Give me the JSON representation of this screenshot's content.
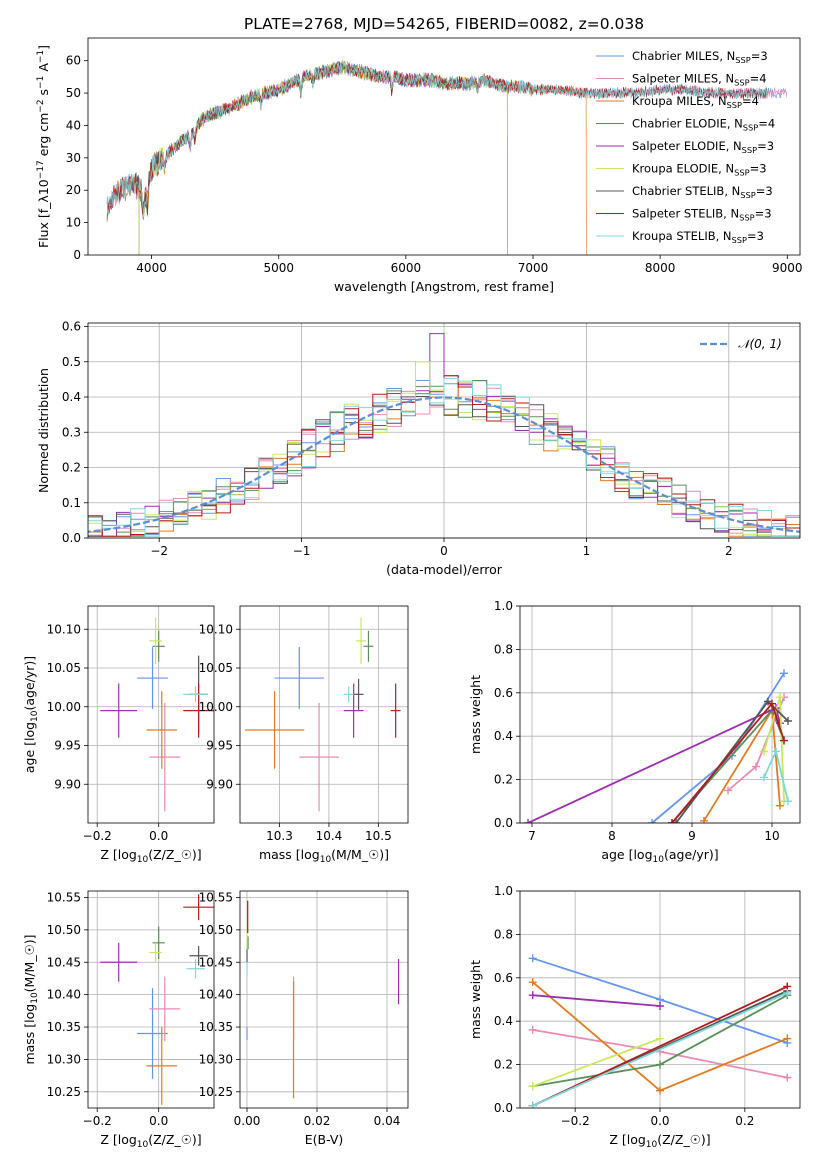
{
  "figure": {
    "title": "PLATE=2768, MJD=54265, FIBERID=0082, z=0.038"
  },
  "series_colors": [
    "#6495ed",
    "#e88ab5",
    "#e07b20",
    "#5b8f5b",
    "#9b2fae",
    "#c8e85a",
    "#555555",
    "#b21b1b",
    "#7fd8d8"
  ],
  "chart_data": [
    {
      "id": "spectrum",
      "type": "line",
      "xlabel": "wavelength [Angstrom, rest frame]",
      "ylabel": "Flux [f_λ 10^-17 erg cm^-2 s^-1 A^-1]",
      "xlim": [
        3500,
        9100
      ],
      "ylim": [
        0,
        67
      ],
      "xticks": [
        4000,
        5000,
        6000,
        7000,
        8000,
        9000
      ],
      "yticks": [
        0,
        10,
        20,
        30,
        40,
        50,
        60
      ],
      "legend_position": "top-right",
      "series": [
        {
          "name": "Chabrier MILES, N_SSP=3",
          "color": "#6495ed",
          "x": [
            3650,
            9000
          ]
        },
        {
          "name": "Salpeter MILES, N_SSP=4",
          "color": "#e88ab5",
          "x": [
            3650,
            9000
          ]
        },
        {
          "name": "Kroupa MILES, N_SSP=4",
          "color": "#e07b20",
          "x": [
            3650,
            7420
          ]
        },
        {
          "name": "Chabrier ELODIE, N_SSP=4",
          "color": "#5b8f5b",
          "x": [
            3900,
            6800
          ]
        },
        {
          "name": "Salpeter ELODIE, N_SSP=3",
          "color": "#9b2fae",
          "x": [
            3900,
            6800
          ]
        },
        {
          "name": "Kroupa ELODIE, N_SSP=3",
          "color": "#c8e85a",
          "x": [
            3900,
            6800
          ]
        },
        {
          "name": "Chabrier STELIB, N_SSP=3",
          "color": "#555555",
          "x": [
            3650,
            8850
          ]
        },
        {
          "name": "Salpeter STELIB, N_SSP=3",
          "color": "#b21b1b",
          "x": [
            3650,
            8850
          ]
        },
        {
          "name": "Kroupa STELIB, N_SSP=3",
          "color": "#7fd8d8",
          "x": [
            3650,
            8850
          ]
        }
      ],
      "continuum": {
        "x": [
          3650,
          3700,
          3750,
          3800,
          3850,
          3900,
          3950,
          4000,
          4100,
          4200,
          4300,
          4400,
          4500,
          4600,
          4700,
          4800,
          4900,
          5000,
          5100,
          5200,
          5300,
          5400,
          5500,
          5600,
          5700,
          5800,
          5900,
          6000,
          6100,
          6200,
          6300,
          6400,
          6500,
          6600,
          6700,
          6800,
          6900,
          7000,
          7200,
          7400,
          7600,
          7800,
          8000,
          8200,
          8400,
          8600,
          8850
        ],
        "y": [
          14,
          18,
          20,
          21,
          22,
          21,
          17,
          27,
          30,
          34,
          37,
          42,
          44,
          45,
          47,
          49,
          50,
          51,
          53,
          55,
          56,
          57,
          58,
          57,
          56,
          55,
          55,
          54,
          54,
          54,
          53,
          53,
          53,
          54,
          53,
          52,
          52,
          51,
          51,
          50,
          50,
          50,
          51,
          51,
          50,
          50,
          50
        ]
      }
    },
    {
      "id": "residuals",
      "type": "histogram",
      "xlabel": "(data-model)/error",
      "ylabel": "Normed distribution",
      "xlim": [
        -2.5,
        2.5
      ],
      "ylim": [
        0,
        0.61
      ],
      "xticks": [
        -2,
        -1,
        0,
        1,
        2
      ],
      "yticks": [
        0.0,
        0.1,
        0.2,
        0.3,
        0.4,
        0.5,
        0.6
      ],
      "bin_width": 0.1,
      "reference_curve": {
        "name": "𝒩(0, 1)",
        "color": "#5b8fd1",
        "style": "dashed",
        "mean": 0,
        "sigma": 1
      },
      "legend_position": "top-right",
      "peak_values": {
        "Salpeter ELODIE": 0.58,
        "Kroupa ELODIE": 0.5
      }
    },
    {
      "id": "age_vs_Z",
      "type": "errorbar",
      "xlabel": "Z [log10(Z/Z☉)]",
      "ylabel": "age  [log10(age/yr)]",
      "xlim": [
        -0.23,
        0.18
      ],
      "ylim": [
        9.85,
        10.13
      ],
      "xticks": [
        -0.2,
        0.0
      ],
      "yticks": [
        9.9,
        9.95,
        10.0,
        10.05,
        10.1
      ],
      "points": [
        {
          "series": "Chabrier MILES",
          "x": -0.02,
          "xerr": 0.05,
          "y": 10.037,
          "yerr": 0.04
        },
        {
          "series": "Salpeter MILES",
          "x": 0.02,
          "xerr": 0.05,
          "y": 9.935,
          "yerr": 0.07
        },
        {
          "series": "Kroupa MILES",
          "x": 0.01,
          "xerr": 0.05,
          "y": 9.97,
          "yerr": 0.05
        },
        {
          "series": "Chabrier ELODIE",
          "x": 0.0,
          "xerr": 0.02,
          "y": 10.078,
          "yerr": 0.02
        },
        {
          "series": "Salpeter ELODIE",
          "x": -0.13,
          "xerr": 0.06,
          "y": 9.995,
          "yerr": 0.035
        },
        {
          "series": "Kroupa ELODIE",
          "x": -0.01,
          "xerr": 0.02,
          "y": 10.085,
          "yerr": 0.03
        },
        {
          "series": "Chabrier STELIB",
          "x": 0.13,
          "xerr": 0.03,
          "y": 10.016,
          "yerr": 0.05
        },
        {
          "series": "Salpeter STELIB",
          "x": 0.13,
          "xerr": 0.05,
          "y": 9.995,
          "yerr": 0.035
        },
        {
          "series": "Kroupa STELIB",
          "x": 0.12,
          "xerr": 0.04,
          "y": 10.016,
          "yerr": 0.01
        }
      ]
    },
    {
      "id": "age_vs_mass",
      "type": "errorbar",
      "xlabel": "mass [log10(M/M☉)]",
      "ylabel": "",
      "xlim": [
        10.22,
        10.56
      ],
      "ylim": [
        9.85,
        10.13
      ],
      "xticks": [
        10.3,
        10.4,
        10.5
      ],
      "yticks": [
        9.9,
        9.95,
        10.0,
        10.05,
        10.1
      ],
      "points": [
        {
          "series": "Chabrier MILES",
          "x": 10.34,
          "xerr": 0.05,
          "y": 10.037,
          "yerr": 0.04
        },
        {
          "series": "Salpeter MILES",
          "x": 10.38,
          "xerr": 0.04,
          "y": 9.935,
          "yerr": 0.07
        },
        {
          "series": "Kroupa MILES",
          "x": 10.29,
          "xerr": 0.06,
          "y": 9.97,
          "yerr": 0.05
        },
        {
          "series": "Chabrier ELODIE",
          "x": 10.48,
          "xerr": 0.01,
          "y": 10.078,
          "yerr": 0.02
        },
        {
          "series": "Salpeter ELODIE",
          "x": 10.45,
          "xerr": 0.02,
          "y": 9.995,
          "yerr": 0.035
        },
        {
          "series": "Kroupa ELODIE",
          "x": 10.465,
          "xerr": 0.01,
          "y": 10.085,
          "yerr": 0.03
        },
        {
          "series": "Chabrier STELIB",
          "x": 10.46,
          "xerr": 0.01,
          "y": 10.016,
          "yerr": 0.02
        },
        {
          "series": "Salpeter STELIB",
          "x": 10.535,
          "xerr": 0.01,
          "y": 9.995,
          "yerr": 0.035
        },
        {
          "series": "Kroupa STELIB",
          "x": 10.44,
          "xerr": 0.01,
          "y": 10.016,
          "yerr": 0.01
        }
      ]
    },
    {
      "id": "weight_vs_age",
      "type": "line",
      "xlabel": "age  [log10(age/yr)]",
      "ylabel": "mass weight",
      "xlim": [
        6.85,
        10.35
      ],
      "ylim": [
        0,
        1
      ],
      "xticks": [
        7,
        8,
        9,
        10
      ],
      "yticks": [
        0.0,
        0.2,
        0.4,
        0.6,
        0.8,
        1.0
      ],
      "series": [
        {
          "name": "Chabrier MILES",
          "x": [
            8.5,
            9.5,
            10.15
          ],
          "y": [
            0.0,
            0.31,
            0.69
          ]
        },
        {
          "name": "Salpeter MILES",
          "x": [
            9.45,
            9.8,
            10.15
          ],
          "y": [
            0.15,
            0.26,
            0.58
          ]
        },
        {
          "name": "Kroupa MILES",
          "x": [
            9.15,
            10.0,
            10.1
          ],
          "y": [
            0.01,
            0.52,
            0.08
          ]
        },
        {
          "name": "Chabrier ELODIE",
          "x": [
            8.75,
            10.0,
            10.15
          ],
          "y": [
            0.0,
            0.52,
            0.38
          ]
        },
        {
          "name": "Salpeter ELODIE",
          "x": [
            6.95,
            10.05,
            10.1
          ],
          "y": [
            0.0,
            0.53,
            0.46
          ]
        },
        {
          "name": "Kroupa ELODIE",
          "x": [
            9.9,
            10.1,
            10.15
          ],
          "y": [
            0.33,
            0.58,
            0.1
          ]
        },
        {
          "name": "Chabrier STELIB",
          "x": [
            8.8,
            9.95,
            10.2
          ],
          "y": [
            0.0,
            0.56,
            0.47
          ]
        },
        {
          "name": "Salpeter STELIB",
          "x": [
            8.75,
            10.0,
            10.15
          ],
          "y": [
            0.0,
            0.55,
            0.38
          ]
        },
        {
          "name": "Kroupa STELIB",
          "x": [
            9.9,
            10.05,
            10.2
          ],
          "y": [
            0.21,
            0.33,
            0.1
          ]
        }
      ]
    },
    {
      "id": "mass_vs_Z",
      "type": "errorbar",
      "xlabel": "Z [log10(Z/Z☉)]",
      "ylabel": "mass [log10(M/M☉)]",
      "xlim": [
        -0.23,
        0.18
      ],
      "ylim": [
        10.225,
        10.56
      ],
      "xticks": [
        -0.2,
        0.0
      ],
      "yticks": [
        10.25,
        10.3,
        10.35,
        10.4,
        10.45,
        10.5,
        10.55
      ],
      "points": [
        {
          "series": "Chabrier MILES",
          "x": -0.02,
          "xerr": 0.05,
          "y": 10.34,
          "yerr": 0.07
        },
        {
          "series": "Salpeter MILES",
          "x": 0.02,
          "xerr": 0.05,
          "y": 10.378,
          "yerr": 0.05
        },
        {
          "series": "Kroupa MILES",
          "x": 0.01,
          "xerr": 0.05,
          "y": 10.29,
          "yerr": 0.06
        },
        {
          "series": "Chabrier ELODIE",
          "x": 0.0,
          "xerr": 0.02,
          "y": 10.48,
          "yerr": 0.025
        },
        {
          "series": "Salpeter ELODIE",
          "x": -0.13,
          "xerr": 0.06,
          "y": 10.45,
          "yerr": 0.03
        },
        {
          "series": "Kroupa ELODIE",
          "x": -0.01,
          "xerr": 0.02,
          "y": 10.465,
          "yerr": 0.015
        },
        {
          "series": "Chabrier STELIB",
          "x": 0.13,
          "xerr": 0.03,
          "y": 10.46,
          "yerr": 0.015
        },
        {
          "series": "Salpeter STELIB",
          "x": 0.13,
          "xerr": 0.05,
          "y": 10.535,
          "yerr": 0.02
        },
        {
          "series": "Kroupa STELIB",
          "x": 0.12,
          "xerr": 0.03,
          "y": 10.44,
          "yerr": 0.015
        }
      ]
    },
    {
      "id": "mass_vs_ebv",
      "type": "errorbar",
      "xlabel": "E(B-V)",
      "ylabel": "",
      "xlim": [
        -0.002,
        0.046
      ],
      "ylim": [
        10.225,
        10.56
      ],
      "xticks": [
        0.0,
        0.02,
        0.04
      ],
      "yticks": [
        10.25,
        10.3,
        10.35,
        10.4,
        10.45,
        10.5,
        10.55
      ],
      "points": [
        {
          "series": "Chabrier MILES",
          "x": 0.0,
          "y": 10.34,
          "yerr": 0.01
        },
        {
          "series": "Salpeter MILES",
          "x": 0.0133,
          "y": 10.378,
          "yerr": 0.05
        },
        {
          "series": "Kroupa MILES",
          "x": 0.0133,
          "y": 10.33,
          "yerr": 0.09
        },
        {
          "series": "Chabrier ELODIE",
          "x": 0.0003,
          "y": 10.48,
          "yerr": 0.01
        },
        {
          "series": "Salpeter ELODIE",
          "x": 0.0433,
          "y": 10.42,
          "yerr": 0.035
        },
        {
          "series": "Kroupa ELODIE",
          "x": 0.0,
          "y": 10.49,
          "yerr": 0.02
        },
        {
          "series": "Chabrier STELIB",
          "x": 0.0,
          "y": 10.46,
          "yerr": 0.01
        },
        {
          "series": "Salpeter STELIB",
          "x": 0.0002,
          "y": 10.52,
          "yerr": 0.025
        },
        {
          "series": "Kroupa STELIB",
          "x": 0.0,
          "y": 10.44,
          "yerr": 0.01
        }
      ]
    },
    {
      "id": "weight_vs_Z",
      "type": "line",
      "xlabel": "Z [log10(Z/Z☉)]",
      "ylabel": "mass weight",
      "xlim": [
        -0.33,
        0.33
      ],
      "ylim": [
        0,
        1
      ],
      "xticks": [
        -0.2,
        0.0,
        0.2
      ],
      "yticks": [
        0.0,
        0.2,
        0.4,
        0.6,
        0.8,
        1.0
      ],
      "series": [
        {
          "name": "Chabrier MILES",
          "x": [
            -0.3,
            0.0,
            0.3
          ],
          "y": [
            0.69,
            0.5,
            0.3
          ]
        },
        {
          "name": "Salpeter MILES",
          "x": [
            -0.3,
            0.0,
            0.3
          ],
          "y": [
            0.36,
            0.26,
            0.14
          ]
        },
        {
          "name": "Kroupa MILES",
          "x": [
            -0.3,
            0.0,
            0.3
          ],
          "y": [
            0.58,
            0.08,
            0.32
          ]
        },
        {
          "name": "Chabrier ELODIE",
          "x": [
            -0.3,
            0.0,
            0.3
          ],
          "y": [
            0.1,
            0.2,
            0.52
          ]
        },
        {
          "name": "Salpeter ELODIE",
          "x": [
            -0.3,
            0.0
          ],
          "y": [
            0.52,
            0.47
          ]
        },
        {
          "name": "Kroupa ELODIE",
          "x": [
            -0.3,
            0.0
          ],
          "y": [
            0.1,
            0.32
          ]
        },
        {
          "name": "Chabrier STELIB",
          "x": [
            -0.3,
            0.3
          ],
          "y": [
            0.01,
            0.54
          ]
        },
        {
          "name": "Salpeter STELIB",
          "x": [
            -0.3,
            0.3
          ],
          "y": [
            0.01,
            0.56
          ]
        },
        {
          "name": "Kroupa STELIB",
          "x": [
            -0.3,
            0.3
          ],
          "y": [
            0.01,
            0.53
          ]
        }
      ]
    }
  ]
}
